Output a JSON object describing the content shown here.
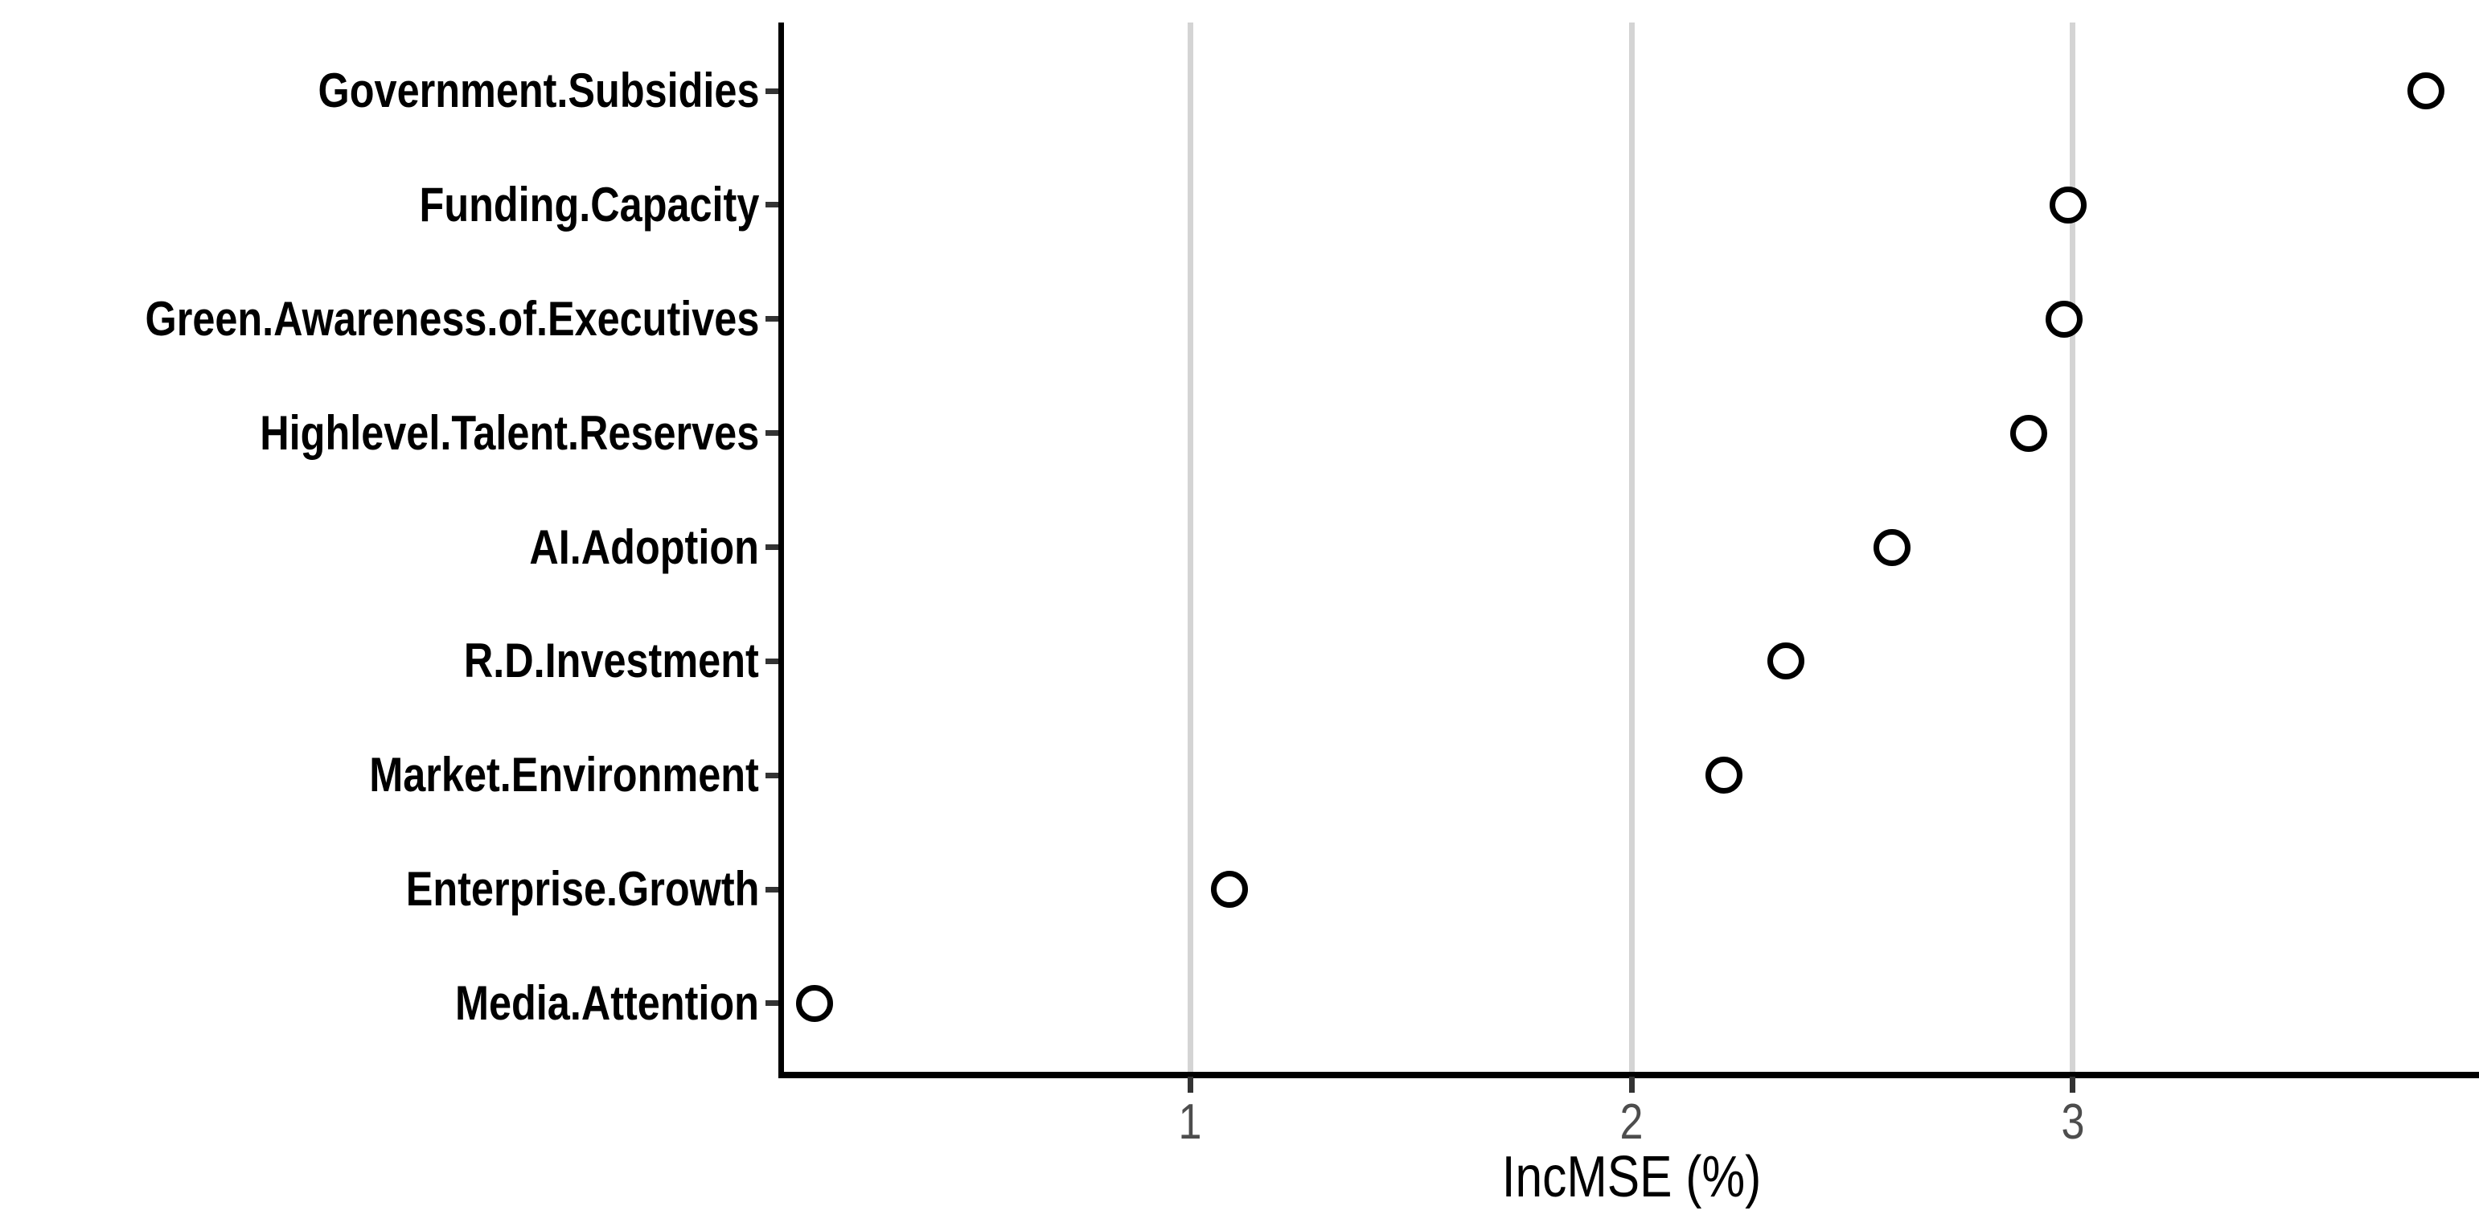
{
  "chart_data": {
    "type": "scatter",
    "subtype": "horizontal-dot-plot",
    "title": "",
    "xlabel": "IncMSE (%)",
    "ylabel": "",
    "categories": [
      "Government.Subsidies",
      "Funding.Capacity",
      "Green.Awareness.of.Executives",
      "Highlevel.Talent.Reserves",
      "AI.Adoption",
      "R.D.Investment",
      "Market.Environment",
      "Enterprise.Growth",
      "Media.Attention"
    ],
    "values": [
      3.8,
      2.99,
      2.98,
      2.9,
      2.59,
      2.35,
      2.21,
      1.09,
      0.15
    ],
    "x_ticks": [
      1,
      2,
      3
    ],
    "xlim": [
      0.08,
      3.92
    ],
    "grid": "vertical-major-gridlines-only",
    "legend": "none",
    "marker": "open-circle"
  },
  "style": {
    "background": "#ffffff",
    "gridline_color": "#d4d4d4",
    "axis_line_color": "#000000",
    "tick_mark_color": "#333333",
    "tick_label_color": "#4d4d4d",
    "category_label_color": "#000000",
    "point_stroke": "#000000",
    "point_fill": "#ffffff"
  }
}
